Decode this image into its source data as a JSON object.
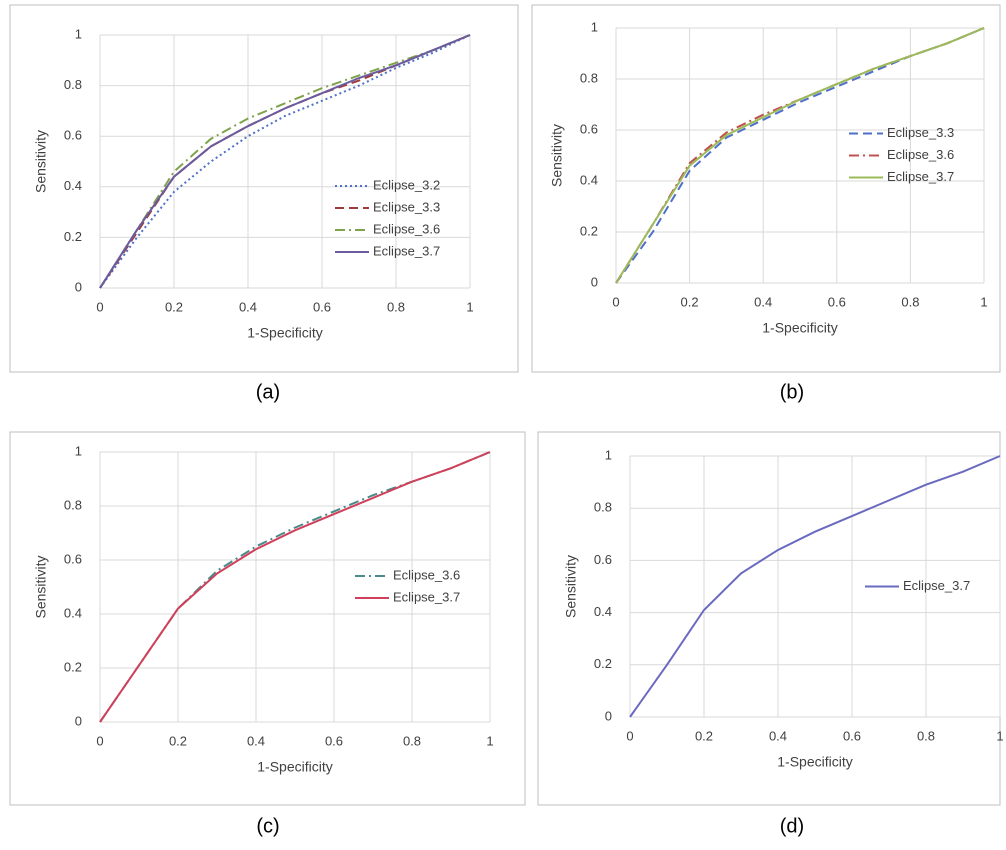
{
  "chart_data": [
    {
      "type": "line",
      "caption": "(a)",
      "x_label": "1-Specificity",
      "y_label": "Sensitivity",
      "x": [
        0,
        0.1,
        0.2,
        0.3,
        0.4,
        0.5,
        0.6,
        0.7,
        0.8,
        0.9,
        1
      ],
      "series": [
        {
          "name": "Eclipse_3.2",
          "color": "#4f6fc8",
          "style": "dotted",
          "values": [
            0,
            0.2,
            0.38,
            0.5,
            0.6,
            0.68,
            0.74,
            0.8,
            0.87,
            0.93,
            1
          ]
        },
        {
          "name": "Eclipse_3.3",
          "color": "#9e3a3a",
          "style": "dashed",
          "values": [
            0,
            0.22,
            0.44,
            0.56,
            0.64,
            0.71,
            0.77,
            0.82,
            0.88,
            0.94,
            1
          ]
        },
        {
          "name": "Eclipse_3.6",
          "color": "#7fa34a",
          "style": "dashdot",
          "values": [
            0,
            0.23,
            0.46,
            0.59,
            0.67,
            0.73,
            0.79,
            0.84,
            0.89,
            0.94,
            1
          ]
        },
        {
          "name": "Eclipse_3.7",
          "color": "#6a5a9e",
          "style": "solid",
          "values": [
            0,
            0.23,
            0.44,
            0.56,
            0.64,
            0.71,
            0.77,
            0.83,
            0.88,
            0.94,
            1
          ]
        }
      ],
      "xlim": [
        0,
        1
      ],
      "ylim": [
        0,
        1
      ],
      "xticks": [
        0,
        0.2,
        0.4,
        0.6,
        0.8,
        1
      ],
      "yticks": [
        0,
        0.2,
        0.4,
        0.6,
        0.8,
        1
      ],
      "grid": true,
      "legend": "lower right"
    },
    {
      "type": "line",
      "caption": "(b)",
      "x_label": "1-Specificity",
      "y_label": "Sensitivity",
      "x": [
        0,
        0.1,
        0.2,
        0.3,
        0.4,
        0.5,
        0.6,
        0.7,
        0.8,
        0.9,
        1
      ],
      "series": [
        {
          "name": "Eclipse_3.3",
          "color": "#4f6fc8",
          "style": "dashed",
          "values": [
            0,
            0.2,
            0.44,
            0.57,
            0.64,
            0.71,
            0.77,
            0.83,
            0.89,
            0.94,
            1
          ]
        },
        {
          "name": "Eclipse_3.6",
          "color": "#c0504d",
          "style": "dashdot",
          "values": [
            0,
            0.23,
            0.47,
            0.59,
            0.66,
            0.72,
            0.78,
            0.84,
            0.89,
            0.94,
            1
          ]
        },
        {
          "name": "Eclipse_3.7",
          "color": "#9bbb59",
          "style": "solid",
          "values": [
            0,
            0.23,
            0.46,
            0.58,
            0.65,
            0.72,
            0.78,
            0.84,
            0.89,
            0.94,
            1
          ]
        }
      ],
      "xlim": [
        0,
        1
      ],
      "ylim": [
        0,
        1
      ],
      "xticks": [
        0,
        0.2,
        0.4,
        0.6,
        0.8,
        1
      ],
      "yticks": [
        0,
        0.2,
        0.4,
        0.6,
        0.8,
        1
      ],
      "grid": true,
      "legend": "center right"
    },
    {
      "type": "line",
      "caption": "(c)",
      "x_label": "1-Specificity",
      "y_label": "Sensitivity",
      "x": [
        0,
        0.1,
        0.2,
        0.3,
        0.4,
        0.5,
        0.6,
        0.7,
        0.8,
        0.9,
        1
      ],
      "series": [
        {
          "name": "Eclipse_3.6",
          "color": "#4a8a8a",
          "style": "dashdot",
          "values": [
            0,
            0.21,
            0.42,
            0.56,
            0.65,
            0.72,
            0.78,
            0.84,
            0.89,
            0.94,
            1
          ]
        },
        {
          "name": "Eclipse_3.7",
          "color": "#d0405a",
          "style": "solid",
          "values": [
            0,
            0.21,
            0.42,
            0.55,
            0.64,
            0.71,
            0.77,
            0.83,
            0.89,
            0.94,
            1
          ]
        }
      ],
      "xlim": [
        0,
        1
      ],
      "ylim": [
        0,
        1
      ],
      "xticks": [
        0,
        0.2,
        0.4,
        0.6,
        0.8,
        1
      ],
      "yticks": [
        0,
        0.2,
        0.4,
        0.6,
        0.8,
        1
      ],
      "grid": true,
      "legend": "center right"
    },
    {
      "type": "line",
      "caption": "(d)",
      "x_label": "1-Specificity",
      "y_label": "Sensitivity",
      "x": [
        0,
        0.1,
        0.2,
        0.3,
        0.4,
        0.5,
        0.6,
        0.7,
        0.8,
        0.9,
        1
      ],
      "series": [
        {
          "name": "Eclipse_3.7",
          "color": "#6a6ac0",
          "style": "solid",
          "values": [
            0,
            0.2,
            0.41,
            0.55,
            0.64,
            0.71,
            0.77,
            0.83,
            0.89,
            0.94,
            1
          ]
        }
      ],
      "xlim": [
        0,
        1
      ],
      "ylim": [
        0,
        1
      ],
      "xticks": [
        0,
        0.2,
        0.4,
        0.6,
        0.8,
        1
      ],
      "yticks": [
        0,
        0.2,
        0.4,
        0.6,
        0.8,
        1
      ],
      "grid": true,
      "legend": "center right"
    }
  ]
}
